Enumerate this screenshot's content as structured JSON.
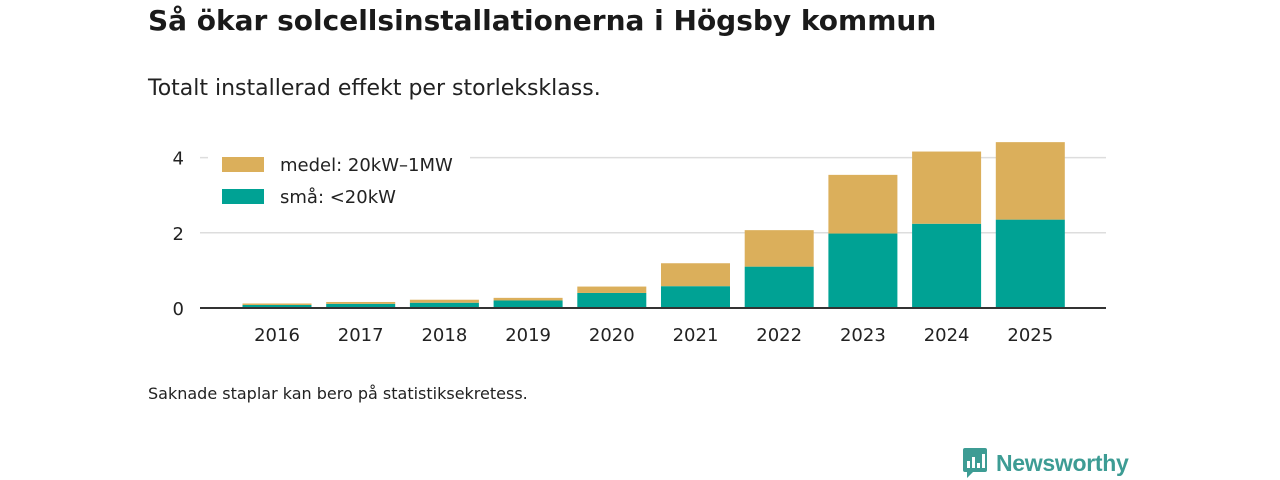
{
  "header": {
    "title": "Så ökar solcellsinstallationerna i Högsby kommun",
    "subtitle": "Totalt installerad effekt per storleksklass."
  },
  "footnote": "Saknade staplar kan bero på statistiksekretess.",
  "brand": {
    "name": "Newsworthy",
    "color": "#3d9c94"
  },
  "chart_data": {
    "type": "bar",
    "stacked": true,
    "categories": [
      "2016",
      "2017",
      "2018",
      "2019",
      "2020",
      "2021",
      "2022",
      "2023",
      "2024",
      "2025"
    ],
    "series": [
      {
        "name": "små: <20kW",
        "color": "#00a294",
        "values": [
          0.08,
          0.11,
          0.14,
          0.2,
          0.4,
          0.58,
          1.1,
          1.98,
          2.24,
          2.35
        ]
      },
      {
        "name": "medel: 20kW–1MW",
        "color": "#dbaf5b",
        "values": [
          0.04,
          0.05,
          0.08,
          0.07,
          0.17,
          0.61,
          0.97,
          1.56,
          1.92,
          2.06
        ]
      }
    ],
    "legend_order": [
      "medel: 20kW–1MW",
      "små: <20kW"
    ],
    "yticks": [
      0,
      2,
      4
    ],
    "ylim": [
      0,
      4.6
    ],
    "title": "",
    "xlabel": "",
    "ylabel": "",
    "grid": true,
    "legend_position": "top-left"
  }
}
